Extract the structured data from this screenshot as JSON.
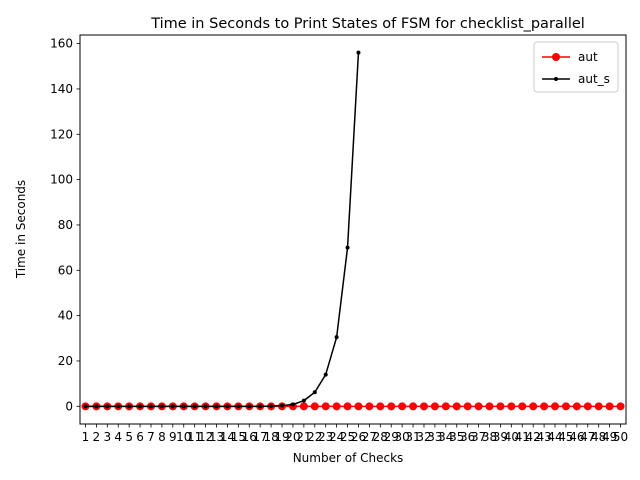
{
  "chart_data": {
    "type": "line",
    "title": "Time in Seconds to Print States of FSM for checklist_parallel",
    "xlabel": "Number of Checks",
    "ylabel": "Time in Seconds",
    "x": [
      1,
      2,
      3,
      4,
      5,
      6,
      7,
      8,
      9,
      10,
      11,
      12,
      13,
      14,
      15,
      16,
      17,
      18,
      19,
      20,
      21,
      22,
      23,
      24,
      25,
      26,
      27,
      28,
      29,
      30,
      31,
      32,
      33,
      34,
      35,
      36,
      37,
      38,
      39,
      40,
      41,
      42,
      43,
      44,
      45,
      46,
      47,
      48,
      49,
      50
    ],
    "x_ticks": [
      "1",
      "2",
      "3",
      "4",
      "5",
      "6",
      "7",
      "8",
      "9",
      "10",
      "11",
      "12",
      "13",
      "14",
      "15",
      "16",
      "17",
      "18",
      "19",
      "20",
      "21",
      "22",
      "23",
      "24",
      "25",
      "26",
      "27",
      "28",
      "29",
      "30",
      "31",
      "32",
      "33",
      "34",
      "35",
      "36",
      "37",
      "38",
      "39",
      "40",
      "41",
      "42",
      "43",
      "44",
      "45",
      "46",
      "47",
      "48",
      "49",
      "50"
    ],
    "y_ticks": [
      0,
      20,
      40,
      60,
      80,
      100,
      120,
      140,
      160
    ],
    "ylim": [
      -7.8,
      163.8
    ],
    "xlim": [
      0.5,
      50.5
    ],
    "legend_position": "top-right",
    "series": [
      {
        "name": "aut",
        "color": "#ff0000",
        "marker": "circle-large",
        "x": [
          1,
          2,
          3,
          4,
          5,
          6,
          7,
          8,
          9,
          10,
          11,
          12,
          13,
          14,
          15,
          16,
          17,
          18,
          19,
          20,
          21,
          22,
          23,
          24,
          25,
          26,
          27,
          28,
          29,
          30,
          31,
          32,
          33,
          34,
          35,
          36,
          37,
          38,
          39,
          40,
          41,
          42,
          43,
          44,
          45,
          46,
          47,
          48,
          49,
          50
        ],
        "values": [
          0,
          0,
          0,
          0,
          0,
          0,
          0,
          0,
          0,
          0,
          0,
          0,
          0,
          0,
          0,
          0,
          0,
          0,
          0,
          0,
          0,
          0,
          0,
          0,
          0,
          0,
          0,
          0,
          0,
          0,
          0,
          0,
          0,
          0,
          0,
          0,
          0,
          0,
          0,
          0,
          0,
          0,
          0,
          0,
          0,
          0,
          0,
          0,
          0,
          0
        ]
      },
      {
        "name": "aut_s",
        "color": "#000000",
        "marker": "circle-small",
        "x": [
          1,
          2,
          3,
          4,
          5,
          6,
          7,
          8,
          9,
          10,
          11,
          12,
          13,
          14,
          15,
          16,
          17,
          18,
          19,
          20,
          21,
          22,
          23,
          24,
          25,
          26
        ],
        "values": [
          0,
          0,
          0,
          0,
          0,
          0,
          0,
          0,
          0,
          0,
          0,
          0,
          0,
          0,
          0,
          0,
          0,
          0.1,
          0.3,
          0.8,
          2.5,
          6.2,
          14,
          30.5,
          70,
          156
        ]
      }
    ]
  }
}
